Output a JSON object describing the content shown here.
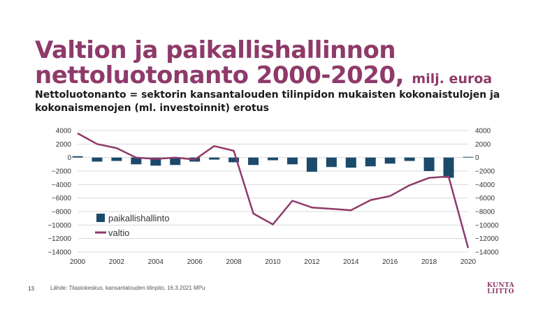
{
  "slide": {
    "title_main": "Valtion ja paikallishallinnon nettoluotonanto 2000-2020,",
    "title_unit": "milj. euroa",
    "subtitle": "Nettoluotonanto = sektorin kansantalouden tilinpidon mukaisten kokonaistulojen ja kokonaismenojen (ml. investoinnit) erotus",
    "slide_number": "13",
    "source": "Lähde: Tilastokeskus, kansantalouden tilinpito, 16.3.2021 MPu",
    "logo_line1": "KUNTA",
    "logo_line2": "LIITTO"
  },
  "colors": {
    "title": "#8e3a6a",
    "bars": "#1b4a6b",
    "line": "#8e3a6a",
    "grid": "#d9d9d9"
  },
  "chart_data": {
    "type": "bar+line",
    "x": [
      2000,
      2001,
      2002,
      2003,
      2004,
      2005,
      2006,
      2007,
      2008,
      2009,
      2010,
      2011,
      2012,
      2013,
      2014,
      2015,
      2016,
      2017,
      2018,
      2019,
      2020
    ],
    "series": [
      {
        "name": "paikallishallinto",
        "type": "bar",
        "values": [
          200,
          -600,
          -500,
          -1000,
          -1200,
          -1100,
          -600,
          -300,
          -700,
          -1100,
          -400,
          -1000,
          -2100,
          -1400,
          -1500,
          -1300,
          -900,
          -500,
          -2000,
          -3000,
          100
        ]
      },
      {
        "name": "valtio",
        "type": "line",
        "values": [
          3600,
          2000,
          1400,
          0,
          -200,
          0,
          -300,
          1700,
          1000,
          -8300,
          -9900,
          -6400,
          -7400,
          -7600,
          -7800,
          -6300,
          -5700,
          -4100,
          -3000,
          -2800,
          -13400
        ]
      }
    ],
    "ylim": [
      -14000,
      4000
    ],
    "yticks": [
      4000,
      2000,
      0,
      -2000,
      -4000,
      -6000,
      -8000,
      -10000,
      -12000,
      -14000
    ],
    "ytick_labels": [
      "4000",
      "2000",
      "0",
      "−2000",
      "−4000",
      "−6000",
      "−8000",
      "−10000",
      "−12000",
      "−14000"
    ],
    "xticks": [
      2000,
      2002,
      2004,
      2006,
      2008,
      2010,
      2012,
      2014,
      2016,
      2018,
      2020
    ],
    "grid": true,
    "legend_position": "lower-left"
  }
}
